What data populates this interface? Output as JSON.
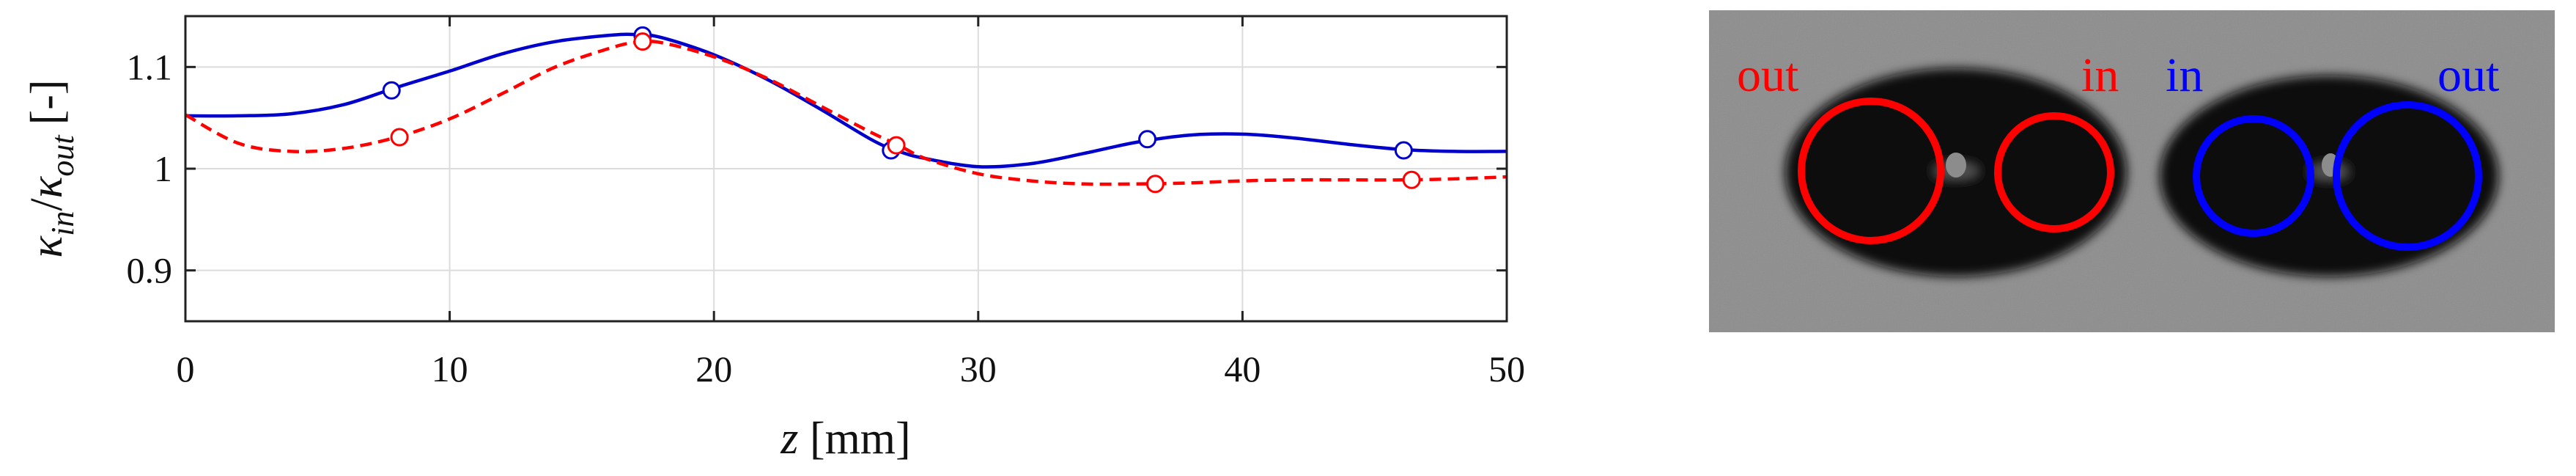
{
  "chart_data": {
    "type": "line",
    "xlabel": {
      "var": "z",
      "unit": "[mm]"
    },
    "ylabel": {
      "base1": "κ",
      "sub1": "in",
      "slash": "/",
      "base2": "κ",
      "sub2": "out",
      "unit": "[-]"
    },
    "xlim": [
      0,
      50
    ],
    "ylim": [
      0.85,
      1.15
    ],
    "xticks": [
      0,
      10,
      20,
      30,
      40,
      50
    ],
    "xtick_labels": [
      "0",
      "10",
      "20",
      "30",
      "40",
      "50"
    ],
    "yticks": [
      0.9,
      1.0,
      1.1
    ],
    "ytick_labels": [
      "0.9",
      "1",
      "1.1"
    ],
    "grid": true,
    "series": [
      {
        "color": "#0000cc",
        "line_style": "solid",
        "curve": [
          [
            0,
            1.052
          ],
          [
            2,
            1.052
          ],
          [
            4,
            1.054
          ],
          [
            6,
            1.063
          ],
          [
            8,
            1.08
          ],
          [
            10,
            1.096
          ],
          [
            12,
            1.113
          ],
          [
            14,
            1.125
          ],
          [
            16,
            1.131
          ],
          [
            17,
            1.132
          ],
          [
            18,
            1.129
          ],
          [
            20,
            1.112
          ],
          [
            22,
            1.088
          ],
          [
            24,
            1.059
          ],
          [
            26,
            1.028
          ],
          [
            27,
            1.017
          ],
          [
            28,
            1.01
          ],
          [
            30,
            1.002
          ],
          [
            32,
            1.005
          ],
          [
            34,
            1.015
          ],
          [
            36,
            1.026
          ],
          [
            38,
            1.033
          ],
          [
            40,
            1.034
          ],
          [
            42,
            1.03
          ],
          [
            44,
            1.024
          ],
          [
            46,
            1.019
          ],
          [
            48,
            1.017
          ],
          [
            50,
            1.017
          ]
        ],
        "markers": [
          [
            7.8,
            1.077
          ],
          [
            17.3,
            1.131
          ],
          [
            26.7,
            1.018
          ],
          [
            36.4,
            1.029
          ],
          [
            46.1,
            1.018
          ]
        ]
      },
      {
        "color": "#ff0000",
        "line_style": "dashed",
        "curve": [
          [
            0,
            1.053
          ],
          [
            2,
            1.025
          ],
          [
            4,
            1.017
          ],
          [
            6,
            1.02
          ],
          [
            8,
            1.031
          ],
          [
            10,
            1.049
          ],
          [
            12,
            1.074
          ],
          [
            14,
            1.1
          ],
          [
            16,
            1.118
          ],
          [
            17,
            1.124
          ],
          [
            18,
            1.124
          ],
          [
            20,
            1.11
          ],
          [
            22,
            1.089
          ],
          [
            24,
            1.062
          ],
          [
            26,
            1.035
          ],
          [
            27,
            1.023
          ],
          [
            28,
            1.01
          ],
          [
            30,
            0.995
          ],
          [
            32,
            0.988
          ],
          [
            34,
            0.985
          ],
          [
            36,
            0.985
          ],
          [
            38,
            0.986
          ],
          [
            40,
            0.988
          ],
          [
            42,
            0.989
          ],
          [
            44,
            0.989
          ],
          [
            46,
            0.989
          ],
          [
            48,
            0.99
          ],
          [
            50,
            0.992
          ]
        ],
        "markers": [
          [
            8.1,
            1.031
          ],
          [
            17.3,
            1.125
          ],
          [
            26.9,
            1.023
          ],
          [
            36.7,
            0.985
          ],
          [
            46.4,
            0.989
          ]
        ]
      }
    ]
  },
  "image_panel": {
    "background_color": "#8c8c8c",
    "labels": [
      {
        "text": "out",
        "color": "#ff0000"
      },
      {
        "text": "in",
        "color": "#ff0000"
      },
      {
        "text": "in",
        "color": "#0000ff"
      },
      {
        "text": "out",
        "color": "#0000ff"
      }
    ]
  }
}
